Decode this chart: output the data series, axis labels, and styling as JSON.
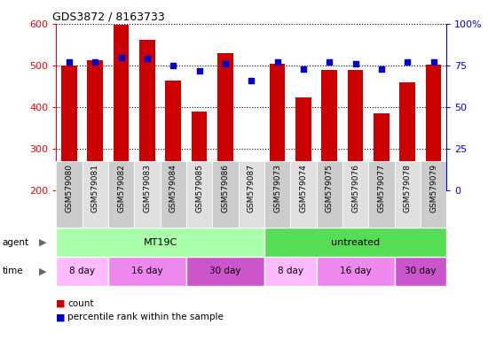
{
  "title": "GDS3872 / 8163733",
  "samples": [
    "GSM579080",
    "GSM579081",
    "GSM579082",
    "GSM579083",
    "GSM579084",
    "GSM579085",
    "GSM579086",
    "GSM579087",
    "GSM579073",
    "GSM579074",
    "GSM579075",
    "GSM579076",
    "GSM579077",
    "GSM579078",
    "GSM579079"
  ],
  "counts": [
    500,
    512,
    597,
    562,
    463,
    390,
    530,
    258,
    505,
    423,
    490,
    490,
    385,
    460,
    503
  ],
  "percentiles": [
    77,
    77,
    80,
    79,
    75,
    72,
    76,
    66,
    77,
    73,
    77,
    76,
    73,
    77,
    77
  ],
  "ymin": 200,
  "ymax": 600,
  "yticks": [
    200,
    300,
    400,
    500,
    600
  ],
  "y2ticks": [
    0,
    25,
    50,
    75,
    100
  ],
  "y2min": 0,
  "y2max": 100,
  "bar_color": "#cc0000",
  "dot_color": "#0000cc",
  "agent_groups": [
    {
      "label": "MT19C",
      "start": 0,
      "end": 8,
      "color": "#aaffaa"
    },
    {
      "label": "untreated",
      "start": 8,
      "end": 15,
      "color": "#55dd55"
    }
  ],
  "time_groups": [
    {
      "label": "8 day",
      "start": 0,
      "end": 2,
      "color": "#ffbbff"
    },
    {
      "label": "16 day",
      "start": 2,
      "end": 5,
      "color": "#ee88ee"
    },
    {
      "label": "30 day",
      "start": 5,
      "end": 8,
      "color": "#cc55cc"
    },
    {
      "label": "8 day",
      "start": 8,
      "end": 10,
      "color": "#ffbbff"
    },
    {
      "label": "16 day",
      "start": 10,
      "end": 13,
      "color": "#ee88ee"
    },
    {
      "label": "30 day",
      "start": 13,
      "end": 15,
      "color": "#cc55cc"
    }
  ],
  "legend_count_color": "#cc0000",
  "legend_pct_color": "#0000cc",
  "bg_color": "#ffffff",
  "sample_bg_even": "#cccccc",
  "sample_bg_odd": "#e0e0e0"
}
